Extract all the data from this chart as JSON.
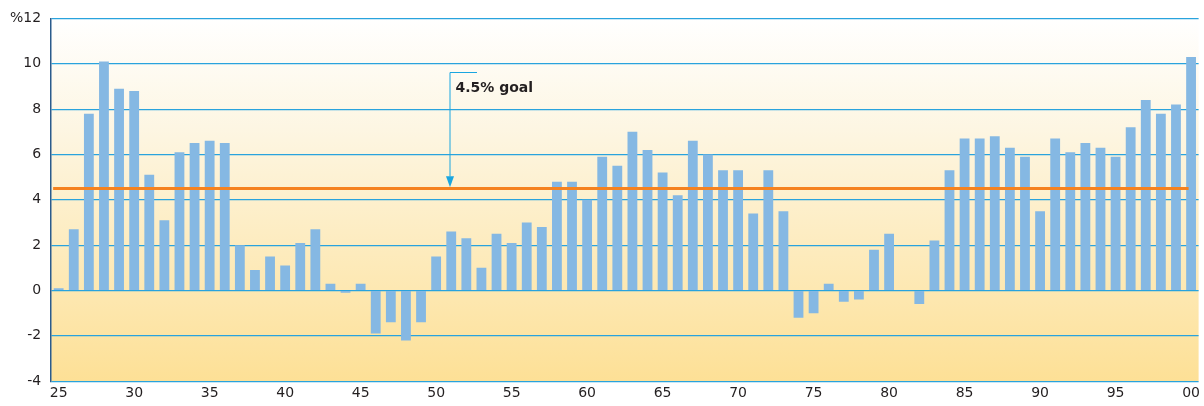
{
  "chart_data": {
    "type": "bar",
    "categories": [
      "25",
      null,
      null,
      null,
      null,
      "30",
      null,
      null,
      null,
      null,
      "35",
      null,
      null,
      null,
      null,
      "40",
      null,
      null,
      null,
      null,
      "45",
      null,
      null,
      null,
      null,
      "50",
      null,
      null,
      null,
      null,
      "55",
      null,
      null,
      null,
      null,
      "60",
      null,
      null,
      null,
      null,
      "65",
      null,
      null,
      null,
      null,
      "70",
      null,
      null,
      null,
      null,
      "75",
      null,
      null,
      null,
      null,
      "80",
      null,
      null,
      null,
      null,
      "85",
      null,
      null,
      null,
      null,
      "90",
      null,
      null,
      null,
      null,
      "95",
      null,
      null,
      null,
      null,
      "00"
    ],
    "values": [
      0.1,
      2.7,
      7.8,
      10.1,
      8.9,
      8.8,
      5.1,
      3.1,
      6.1,
      6.5,
      6.6,
      6.5,
      2.0,
      0.9,
      1.5,
      1.1,
      2.1,
      2.7,
      0.3,
      -0.1,
      0.3,
      -1.9,
      -1.4,
      -2.2,
      -1.4,
      1.5,
      2.6,
      2.3,
      1.0,
      2.5,
      2.1,
      3.0,
      2.8,
      4.8,
      4.8,
      4.0,
      5.9,
      5.5,
      7.0,
      6.2,
      5.2,
      4.2,
      6.6,
      6.0,
      5.3,
      5.3,
      3.4,
      5.3,
      3.5,
      -1.2,
      -1.0,
      0.3,
      -0.5,
      -0.4,
      1.8,
      2.5,
      0.0,
      -0.6,
      2.2,
      5.3,
      6.7,
      6.7,
      6.8,
      6.3,
      5.9,
      3.5,
      6.7,
      6.1,
      6.5,
      6.3,
      5.9,
      7.2,
      8.4,
      7.8,
      8.2,
      10.3
    ],
    "color": "#85b8e3",
    "ylim": [
      -4,
      12
    ],
    "yticks": [
      -4,
      -2,
      0,
      2,
      4,
      6,
      8,
      10,
      {
        "value": 12,
        "label": "%12"
      }
    ],
    "grid": "y",
    "ref_lines": [
      {
        "axis": "y",
        "value": 4.5,
        "color": "#f5821f"
      }
    ],
    "annotations": [
      "4.5% goal"
    ]
  }
}
